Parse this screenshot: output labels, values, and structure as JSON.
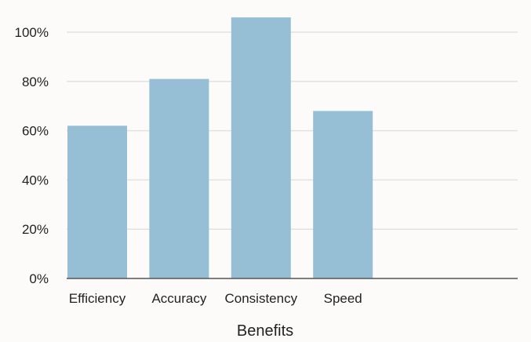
{
  "chart_data": {
    "type": "bar",
    "title": "",
    "xlabel": "Benefits",
    "ylabel": "",
    "categories": [
      "Efficiency",
      "Accuracy",
      "Consistency",
      "Speed"
    ],
    "values": [
      62,
      81,
      106,
      68
    ],
    "ylim": [
      0,
      100
    ],
    "yticks": [
      0,
      20,
      40,
      60,
      80,
      100
    ],
    "ytick_labels": [
      "0%",
      "20%",
      "40%",
      "60%",
      "80%",
      "100%"
    ],
    "grid": true,
    "legend": "none",
    "bar_color": "#96bfd6"
  }
}
